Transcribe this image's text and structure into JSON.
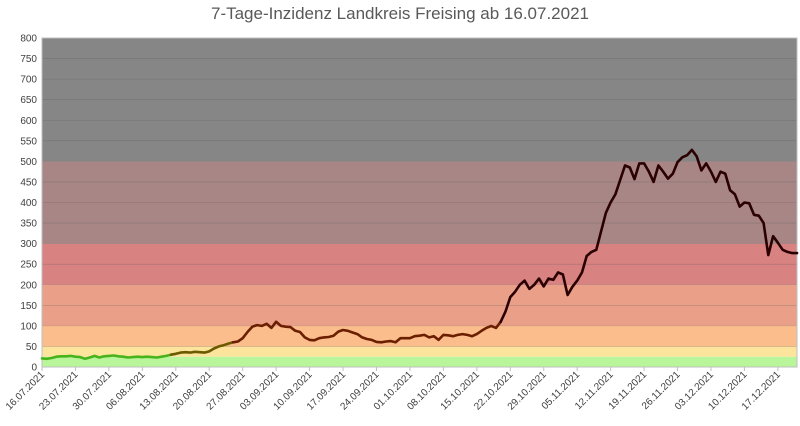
{
  "chart_data": {
    "type": "line",
    "title": "7-Tage-Inzidenz Landkreis Freising ab 16.07.2021",
    "xlabel": "",
    "ylabel": "",
    "ylim": [
      0,
      800
    ],
    "yticks": [
      "0",
      "50",
      "100",
      "150",
      "200",
      "250",
      "300",
      "350",
      "400",
      "450",
      "500",
      "550",
      "600",
      "650",
      "700",
      "750",
      "800"
    ],
    "x_start": "16.07.2021",
    "x_end": "21.12.2021",
    "xticks": [
      "16.07.2021",
      "23.07.2021",
      "30.07.2021",
      "06.08.2021",
      "13.08.2021",
      "20.08.2021",
      "27.08.2021",
      "03.09.2021",
      "10.09.2021",
      "17.09.2021",
      "24.09.2021",
      "01.10.2021",
      "08.10.2021",
      "15.10.2021",
      "22.10.2021",
      "29.10.2021",
      "05.11.2021",
      "12.11.2021",
      "19.11.2021",
      "26.11.2021",
      "03.12.2021",
      "10.12.2021",
      "17.12.2021"
    ],
    "grid": "horizontal",
    "legend": "none",
    "bands": [
      {
        "from": 0,
        "to": 25,
        "color": "#b9f59a"
      },
      {
        "from": 25,
        "to": 50,
        "color": "#fde49c"
      },
      {
        "from": 50,
        "to": 100,
        "color": "#fbbd8c"
      },
      {
        "from": 100,
        "to": 200,
        "color": "#eaa088"
      },
      {
        "from": 200,
        "to": 300,
        "color": "#d88282"
      },
      {
        "from": 300,
        "to": 500,
        "color": "#a88686"
      },
      {
        "from": 500,
        "to": 800,
        "color": "#868686"
      }
    ],
    "line_segments": [
      {
        "color": "#48b31b",
        "x": [
          "16.07.2021",
          "17.07.2021",
          "18.07.2021",
          "19.07.2021",
          "20.07.2021",
          "21.07.2021",
          "22.07.2021",
          "23.07.2021",
          "24.07.2021",
          "25.07.2021",
          "26.07.2021",
          "27.07.2021",
          "28.07.2021",
          "29.07.2021",
          "30.07.2021",
          "31.07.2021",
          "01.08.2021",
          "02.08.2021",
          "03.08.2021",
          "04.08.2021",
          "05.08.2021",
          "06.08.2021",
          "07.08.2021",
          "08.08.2021",
          "09.08.2021",
          "10.08.2021",
          "11.08.2021",
          "12.08.2021"
        ],
        "y": [
          21,
          20,
          22,
          25,
          26,
          26,
          27,
          25,
          24,
          20,
          23,
          27,
          23,
          26,
          27,
          28,
          26,
          25,
          23,
          24,
          25,
          24,
          25,
          24,
          23,
          25,
          27,
          30
        ]
      },
      {
        "color": "#6b5a00",
        "x": [
          "12.08.2021",
          "13.08.2021",
          "14.08.2021",
          "15.08.2021",
          "16.08.2021",
          "17.08.2021",
          "18.08.2021",
          "19.08.2021",
          "20.08.2021",
          "21.08.2021",
          "22.08.2021",
          "23.08.2021",
          "24.08.2021",
          "25.08.2021"
        ],
        "y": [
          30,
          32,
          35,
          36,
          35,
          37,
          36,
          35,
          38,
          45,
          50,
          53,
          57,
          60
        ]
      },
      {
        "color": "#6b1e00",
        "x": [
          "25.08.2021",
          "26.08.2021",
          "27.08.2021",
          "28.08.2021",
          "29.08.2021",
          "30.08.2021",
          "31.08.2021",
          "01.09.2021",
          "02.09.2021",
          "03.09.2021",
          "04.09.2021",
          "05.09.2021",
          "06.09.2021",
          "07.09.2021",
          "08.09.2021",
          "09.09.2021",
          "10.09.2021",
          "11.09.2021",
          "12.09.2021",
          "13.09.2021",
          "14.09.2021",
          "15.09.2021",
          "16.09.2021",
          "17.09.2021",
          "18.09.2021",
          "19.09.2021",
          "20.09.2021",
          "21.09.2021",
          "22.09.2021",
          "23.09.2021",
          "24.09.2021",
          "25.09.2021",
          "26.09.2021",
          "27.09.2021",
          "28.09.2021",
          "29.09.2021",
          "30.09.2021",
          "01.10.2021",
          "02.10.2021",
          "03.10.2021",
          "04.10.2021",
          "05.10.2021",
          "06.10.2021",
          "07.10.2021",
          "08.10.2021",
          "09.10.2021",
          "10.10.2021",
          "11.10.2021",
          "12.10.2021",
          "13.10.2021",
          "14.10.2021",
          "15.10.2021",
          "16.10.2021",
          "17.10.2021",
          "18.10.2021",
          "19.10.2021",
          "20.10.2021"
        ],
        "y": [
          60,
          62,
          70,
          85,
          98,
          102,
          100,
          105,
          95,
          110,
          100,
          98,
          97,
          88,
          85,
          72,
          66,
          65,
          70,
          72,
          73,
          76,
          86,
          90,
          88,
          84,
          80,
          72,
          68,
          66,
          61,
          60,
          62,
          63,
          60,
          70,
          70,
          70,
          75,
          76,
          78,
          72,
          75,
          66,
          78,
          77,
          75,
          78,
          80,
          78,
          75,
          80,
          88,
          95,
          100,
          95,
          110
        ]
      },
      {
        "color": "#2a0000",
        "x": [
          "20.10.2021",
          "21.10.2021",
          "22.10.2021",
          "23.10.2021",
          "24.10.2021",
          "25.10.2021",
          "26.10.2021",
          "27.10.2021",
          "28.10.2021",
          "29.10.2021",
          "30.10.2021",
          "31.10.2021",
          "01.11.2021",
          "02.11.2021",
          "03.11.2021",
          "04.11.2021",
          "05.11.2021",
          "06.11.2021",
          "07.11.2021",
          "08.11.2021",
          "09.11.2021",
          "10.11.2021",
          "11.11.2021",
          "12.11.2021",
          "13.11.2021",
          "14.11.2021",
          "15.11.2021",
          "16.11.2021",
          "17.11.2021",
          "18.11.2021",
          "19.11.2021",
          "20.11.2021",
          "21.11.2021",
          "22.11.2021",
          "23.11.2021",
          "24.11.2021",
          "25.11.2021",
          "26.11.2021",
          "27.11.2021",
          "28.11.2021",
          "29.11.2021",
          "30.11.2021",
          "01.12.2021",
          "02.12.2021",
          "03.12.2021",
          "04.12.2021",
          "05.12.2021",
          "06.12.2021",
          "07.12.2021",
          "08.12.2021",
          "09.12.2021",
          "10.12.2021",
          "11.12.2021",
          "12.12.2021",
          "13.12.2021",
          "14.12.2021",
          "15.12.2021",
          "16.12.2021",
          "17.12.2021",
          "18.12.2021",
          "19.12.2021",
          "20.12.2021",
          "21.12.2021"
        ],
        "y": [
          110,
          135,
          170,
          183,
          200,
          210,
          190,
          200,
          215,
          196,
          215,
          212,
          230,
          225,
          175,
          195,
          210,
          230,
          270,
          280,
          285,
          330,
          375,
          400,
          420,
          455,
          490,
          485,
          457,
          495,
          495,
          475,
          450,
          490,
          475,
          458,
          470,
          498,
          510,
          515,
          528,
          512,
          478,
          495,
          475,
          450,
          475,
          470,
          430,
          420,
          390,
          400,
          398,
          370,
          368,
          350,
          272,
          318,
          302,
          285,
          280,
          277,
          277
        ]
      }
    ]
  }
}
